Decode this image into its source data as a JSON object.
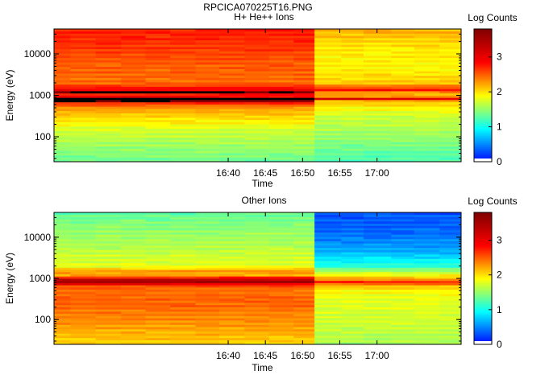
{
  "figure": {
    "filename": "RPCICA070225T16.PNG"
  },
  "colors": {
    "colormap": [
      "#0000ff",
      "#00ffff",
      "#ffff00",
      "#ff0000",
      "#800000"
    ],
    "saturated": "#000000",
    "empty": "#ffffff"
  },
  "chart_data": [
    {
      "type": "heatmap",
      "title": "H+ He++ Ions",
      "xlabel": "Time",
      "ylabel": "Energy (eV)",
      "y_scale": "log",
      "ylim": [
        25,
        40000
      ],
      "xlim_minutes": [
        16.6,
        71.3
      ],
      "xtick_minutes": [
        40,
        45,
        50,
        55,
        60
      ],
      "xtick_labels": [
        "16:40",
        "16:45",
        "16:50",
        "16:55",
        "17:00"
      ],
      "ytick_values": [
        100,
        1000,
        10000
      ],
      "ytick_labels": [
        "100",
        "1000",
        "10000"
      ],
      "colorbar": {
        "label": "Log Counts",
        "range": [
          0,
          3.8
        ],
        "ticks": [
          0,
          1,
          2,
          3
        ],
        "tick_labels": [
          "0",
          "1",
          "2",
          "3"
        ]
      },
      "time_columns_minutes": [
        [
          16.6,
          18.8
        ],
        [
          18.8,
          22.2
        ],
        [
          22.2,
          25.6
        ],
        [
          25.6,
          28.9
        ],
        [
          28.9,
          32.2
        ],
        [
          32.2,
          35.6
        ],
        [
          35.6,
          38.8
        ],
        [
          38.8,
          42.2
        ],
        [
          42.2,
          45.5
        ],
        [
          45.5,
          48.8
        ],
        [
          48.8,
          51.6
        ],
        [
          51.6,
          55.2
        ],
        [
          55.2,
          58.2
        ],
        [
          58.2,
          61.9
        ],
        [
          61.9,
          65.0
        ],
        [
          65.0,
          68.4
        ],
        [
          68.4,
          71.3
        ]
      ],
      "energy_profile_period_1": [
        [
          40000,
          2.75
        ],
        [
          20000,
          2.7
        ],
        [
          10000,
          2.6
        ],
        [
          5000,
          2.5
        ],
        [
          2000,
          2.45
        ],
        [
          1300,
          3.0
        ],
        [
          1200,
          3.9
        ],
        [
          1100,
          2.8
        ],
        [
          950,
          2.8
        ],
        [
          850,
          3.9
        ],
        [
          750,
          3.9
        ],
        [
          650,
          2.7
        ],
        [
          500,
          2.3
        ],
        [
          300,
          2.05
        ],
        [
          150,
          1.75
        ],
        [
          80,
          1.6
        ],
        [
          50,
          1.5
        ],
        [
          30,
          1.4
        ],
        [
          25,
          1.3
        ]
      ],
      "energy_profile_period_2": [
        [
          40000,
          2.2
        ],
        [
          20000,
          2.05
        ],
        [
          10000,
          1.95
        ],
        [
          5000,
          1.9
        ],
        [
          2000,
          2.1
        ],
        [
          1300,
          2.9
        ],
        [
          1200,
          2.3
        ],
        [
          1100,
          2.2
        ],
        [
          950,
          2.2
        ],
        [
          850,
          3.3
        ],
        [
          750,
          2.2
        ],
        [
          650,
          2.1
        ],
        [
          500,
          1.9
        ],
        [
          300,
          1.7
        ],
        [
          150,
          1.6
        ],
        [
          80,
          1.45
        ],
        [
          50,
          1.35
        ],
        [
          30,
          1.25
        ],
        [
          25,
          1.2
        ]
      ],
      "period_boundary_minute": 51.6
    },
    {
      "type": "heatmap",
      "title": "Other Ions",
      "xlabel": "Time",
      "ylabel": "Energy (eV)",
      "y_scale": "log",
      "ylim": [
        25,
        40000
      ],
      "xlim_minutes": [
        16.6,
        71.3
      ],
      "xtick_minutes": [
        40,
        45,
        50,
        55,
        60
      ],
      "xtick_labels": [
        "16:40",
        "16:45",
        "16:50",
        "16:55",
        "17:00"
      ],
      "ytick_values": [
        100,
        1000,
        10000
      ],
      "ytick_labels": [
        "100",
        "1000",
        "10000"
      ],
      "colorbar": {
        "label": "Log Counts",
        "range": [
          0,
          3.8
        ],
        "ticks": [
          0,
          1,
          2,
          3
        ],
        "tick_labels": [
          "0",
          "1",
          "2",
          "3"
        ]
      },
      "time_columns_minutes": [
        [
          16.6,
          18.8
        ],
        [
          18.8,
          22.2
        ],
        [
          22.2,
          25.6
        ],
        [
          25.6,
          28.9
        ],
        [
          28.9,
          32.2
        ],
        [
          32.2,
          35.6
        ],
        [
          35.6,
          38.8
        ],
        [
          38.8,
          42.2
        ],
        [
          42.2,
          45.5
        ],
        [
          45.5,
          48.8
        ],
        [
          48.8,
          51.6
        ],
        [
          51.6,
          55.2
        ],
        [
          55.2,
          58.2
        ],
        [
          58.2,
          61.9
        ],
        [
          61.9,
          65.0
        ],
        [
          65.0,
          68.4
        ],
        [
          68.4,
          71.3
        ]
      ],
      "energy_profile_period_1": [
        [
          40000,
          1.3
        ],
        [
          20000,
          1.45
        ],
        [
          10000,
          1.55
        ],
        [
          5000,
          1.65
        ],
        [
          2000,
          1.8
        ],
        [
          1500,
          2.3
        ],
        [
          1200,
          2.2
        ],
        [
          900,
          3.5
        ],
        [
          800,
          3.6
        ],
        [
          700,
          2.6
        ],
        [
          500,
          2.45
        ],
        [
          300,
          2.5
        ],
        [
          150,
          2.4
        ],
        [
          80,
          2.3
        ],
        [
          50,
          2.2
        ],
        [
          30,
          2.1
        ],
        [
          25,
          2.0
        ]
      ],
      "energy_profile_period_2": [
        [
          40000,
          0.3
        ],
        [
          20000,
          0.35
        ],
        [
          10000,
          0.45
        ],
        [
          5000,
          0.6
        ],
        [
          2000,
          1.1
        ],
        [
          1500,
          1.6
        ],
        [
          1200,
          1.9
        ],
        [
          900,
          2.4
        ],
        [
          800,
          2.9
        ],
        [
          700,
          2.2
        ],
        [
          500,
          1.9
        ],
        [
          300,
          1.8
        ],
        [
          150,
          1.75
        ],
        [
          80,
          1.7
        ],
        [
          50,
          1.65
        ],
        [
          30,
          1.6
        ],
        [
          25,
          1.5
        ]
      ],
      "period_boundary_minute": 51.6
    }
  ]
}
